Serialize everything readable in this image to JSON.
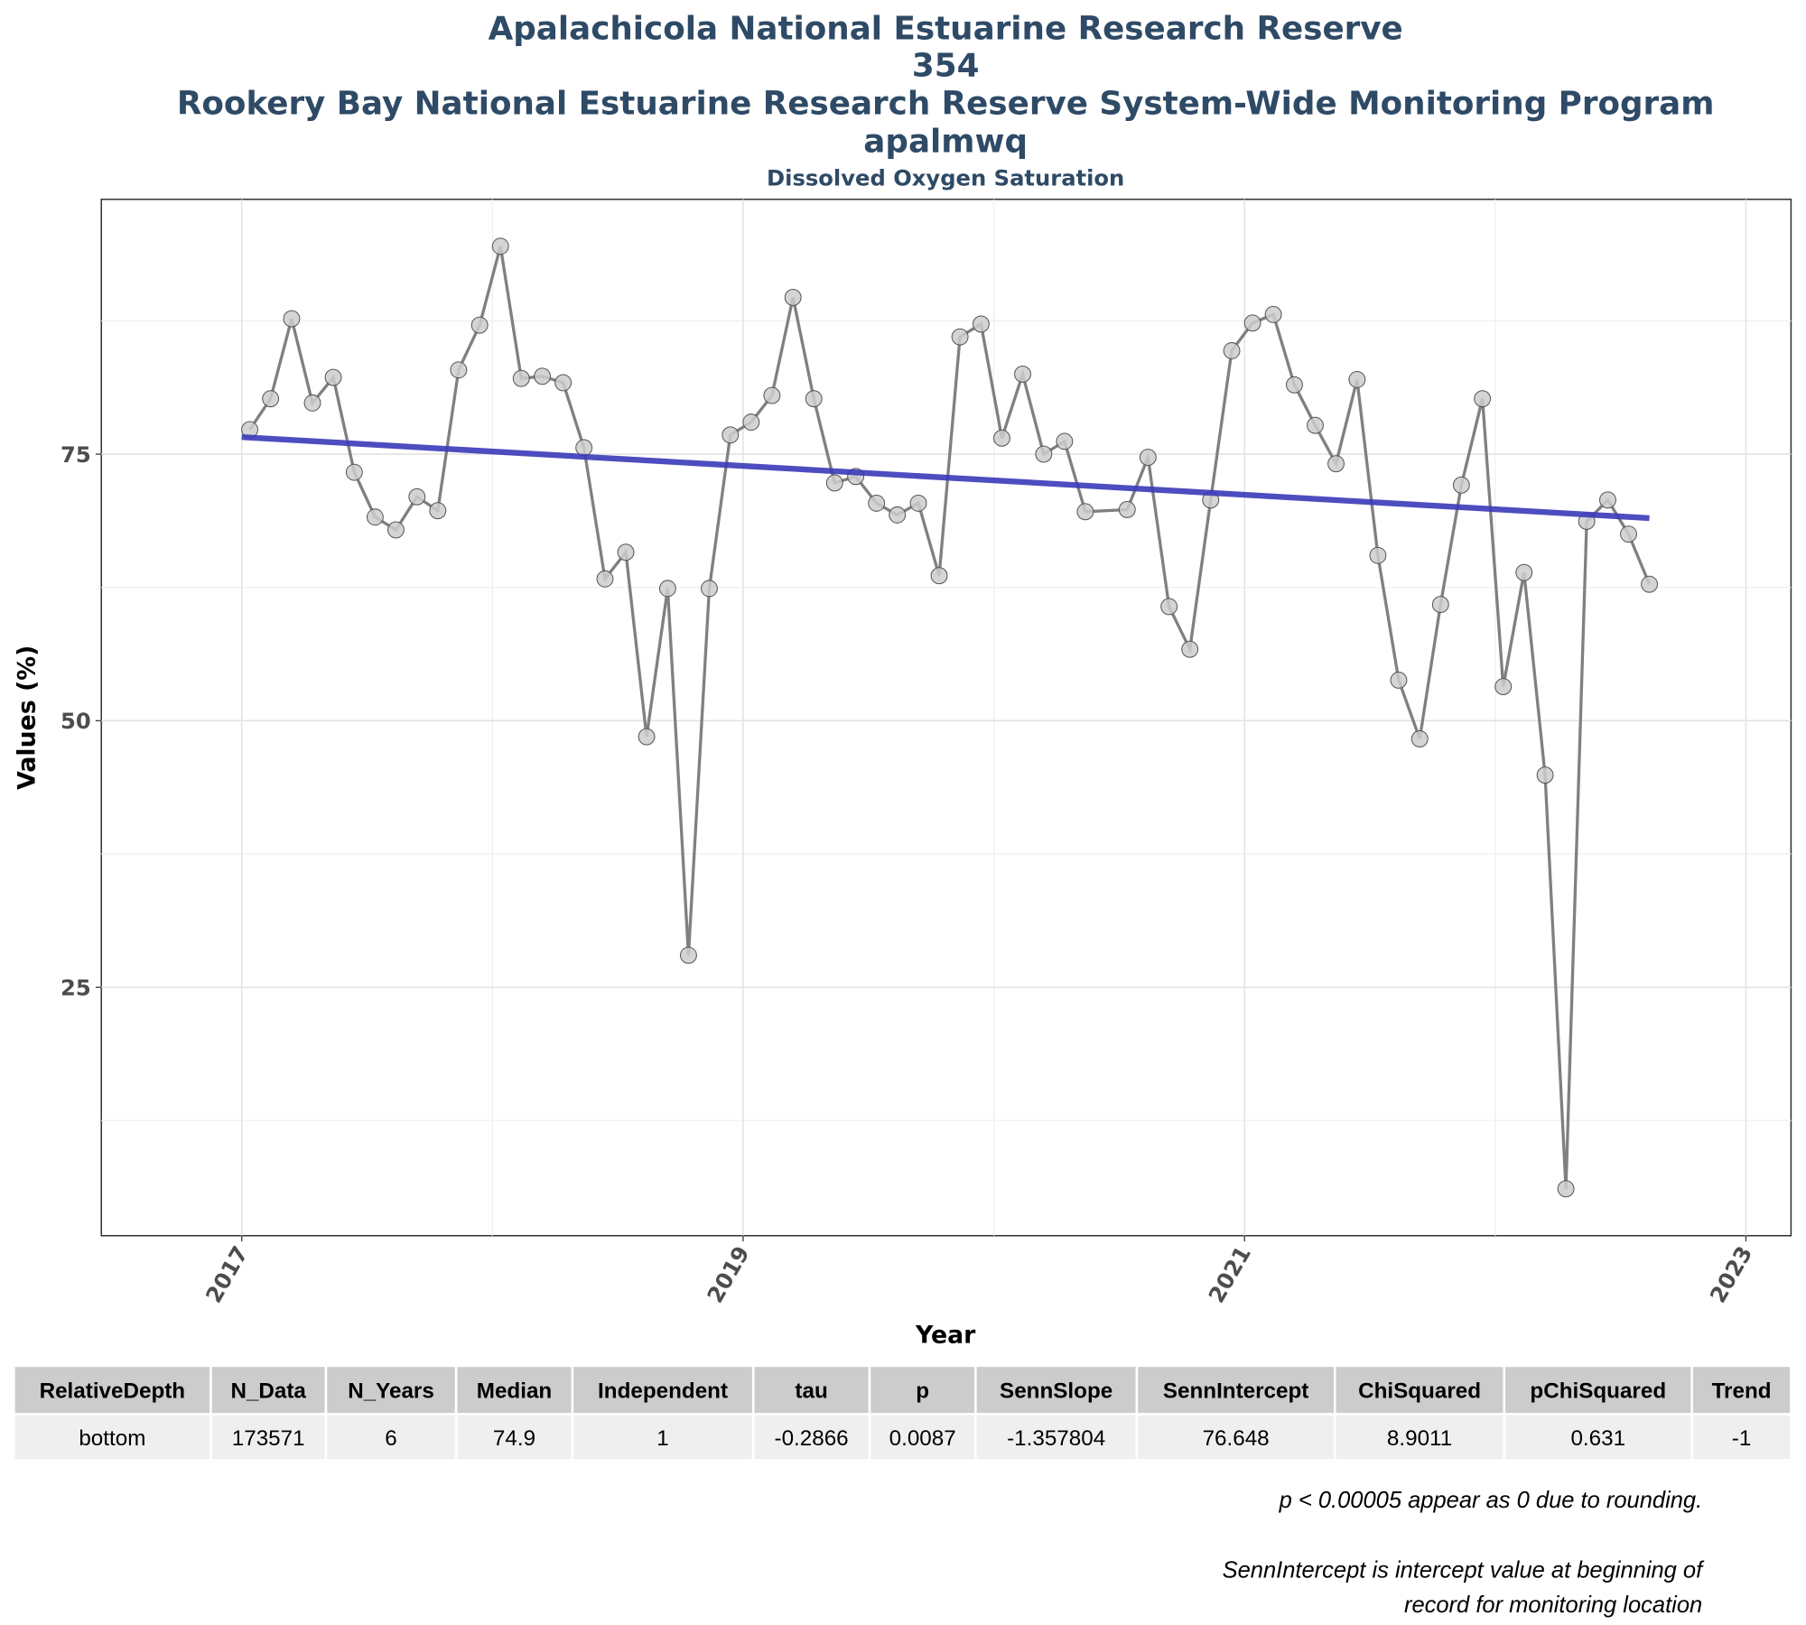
{
  "chart_data": {
    "type": "line",
    "title_lines": [
      "Apalachicola National Estuarine Research Reserve",
      "354",
      "Rookery Bay National Estuarine Research Reserve System-Wide Monitoring Program",
      "apalmwq"
    ],
    "subtitle": "Dissolved Oxygen Saturation",
    "x_label": "Year",
    "y_label": "Values (%)",
    "xlim": [
      2016.44,
      2023.18
    ],
    "xticks": [
      2017,
      2019,
      2021,
      2023
    ],
    "ylim": [
      1.7,
      98.9
    ],
    "yticks": [
      25,
      50,
      75
    ],
    "grid": true,
    "series": [
      {
        "color": "#808080",
        "marker_fill": "#cccccc",
        "x": [
          2017.032,
          2017.115,
          2017.199,
          2017.282,
          2017.365,
          2017.449,
          2017.532,
          2017.615,
          2017.699,
          2017.782,
          2017.865,
          2017.949,
          2018.032,
          2018.115,
          2018.199,
          2018.282,
          2018.365,
          2018.449,
          2018.532,
          2018.615,
          2018.699,
          2018.782,
          2018.865,
          2018.949,
          2019.032,
          2019.115,
          2019.199,
          2019.282,
          2019.365,
          2019.449,
          2019.532,
          2019.615,
          2019.699,
          2019.782,
          2019.865,
          2019.949,
          2020.032,
          2020.115,
          2020.199,
          2020.282,
          2020.365,
          2020.532,
          2020.615,
          2020.699,
          2020.782,
          2020.865,
          2020.949,
          2021.032,
          2021.115,
          2021.199,
          2021.282,
          2021.365,
          2021.449,
          2021.532,
          2021.615,
          2021.699,
          2021.782,
          2021.865,
          2021.949,
          2022.032,
          2022.115,
          2022.199,
          2022.282,
          2022.365,
          2022.449,
          2022.532,
          2022.615
        ],
        "values": [
          77.3,
          80.2,
          87.7,
          79.8,
          82.2,
          73.3,
          69.1,
          67.9,
          71.0,
          69.7,
          82.9,
          87.1,
          94.5,
          82.1,
          82.3,
          81.7,
          75.6,
          63.3,
          65.8,
          48.5,
          62.4,
          28.0,
          62.4,
          76.8,
          78.0,
          80.5,
          89.7,
          80.2,
          72.3,
          72.9,
          70.4,
          69.3,
          70.4,
          63.6,
          86.0,
          87.2,
          76.5,
          82.5,
          75.0,
          76.2,
          69.6,
          69.8,
          74.7,
          60.7,
          56.7,
          70.7,
          84.7,
          87.3,
          88.1,
          81.5,
          77.7,
          74.1,
          82.0,
          65.5,
          53.8,
          48.3,
          60.9,
          72.1,
          80.2,
          53.2,
          63.9,
          44.9,
          6.1,
          68.7,
          70.7,
          67.5,
          62.8
        ]
      },
      {
        "color": "#3a3ab8",
        "style": "trend",
        "x": [
          2017.0,
          2022.615
        ],
        "values": [
          76.6,
          69.0
        ]
      }
    ]
  },
  "table": {
    "columns": [
      "RelativeDepth",
      "N_Data",
      "N_Years",
      "Median",
      "Independent",
      "tau",
      "p",
      "SennSlope",
      "SennIntercept",
      "ChiSquared",
      "pChiSquared",
      "Trend"
    ],
    "rows": [
      [
        "bottom",
        "173571",
        "6",
        "74.9",
        "1",
        "-0.2866",
        "0.0087",
        "-1.357804",
        "76.648",
        "8.9011",
        "0.631",
        "-1"
      ]
    ]
  },
  "notes": [
    "p < 0.00005 appear as 0 due to rounding.",
    "SennIntercept is intercept value at beginning of",
    "record for monitoring location"
  ]
}
